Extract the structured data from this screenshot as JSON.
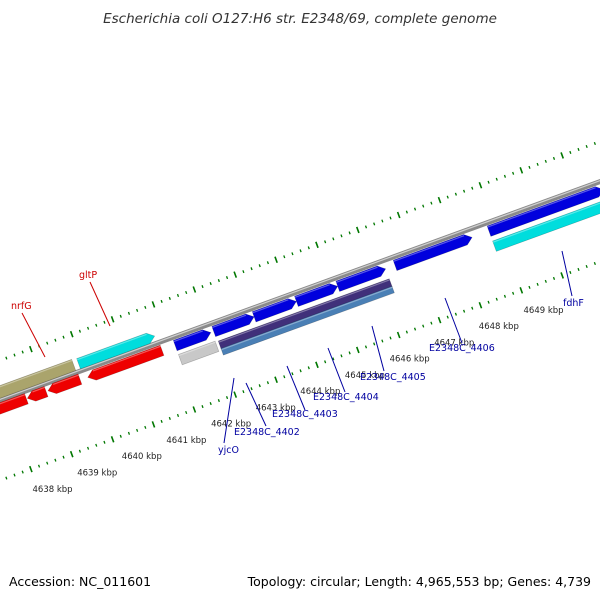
{
  "title": "Escherichia coli O127:H6 str. E2348/69, complete genome",
  "footer": {
    "accession": "Accession: NC_011601",
    "summary": "Topology: circular; Length: 4,965,553 bp; Genes: 4,739"
  },
  "kbp_labels": [
    "4638 kbp",
    "4639 kbp",
    "4640 kbp",
    "4641 kbp",
    "4642 kbp",
    "4643 kbp",
    "4644 kbp",
    "4645 kbp",
    "4646 kbp",
    "4647 kbp",
    "4648 kbp",
    "4649 kbp"
  ],
  "gene_labels": {
    "nrfG": "nrfG",
    "gltP": "gltP",
    "yjcO": "yjcO",
    "E2348C_4402": "E2348C_4402",
    "E2348C_4403": "E2348C_4403",
    "E2348C_4404": "E2348C_4404",
    "E2348C_4405": "E2348C_4405",
    "E2348C_4406": "E2348C_4406",
    "fdhF": "fdhF"
  },
  "colors": {
    "forward_cds": "#0000dd",
    "reverse_cds": "#ee0000",
    "rna": "#00dddd",
    "pseudo": "#aaa46c",
    "grey_feature": "#c8c8c8",
    "navy_feature": "#40307a",
    "steel_feature": "#4a7fb5",
    "backbone": "#888888",
    "tick_green": "#007700"
  }
}
